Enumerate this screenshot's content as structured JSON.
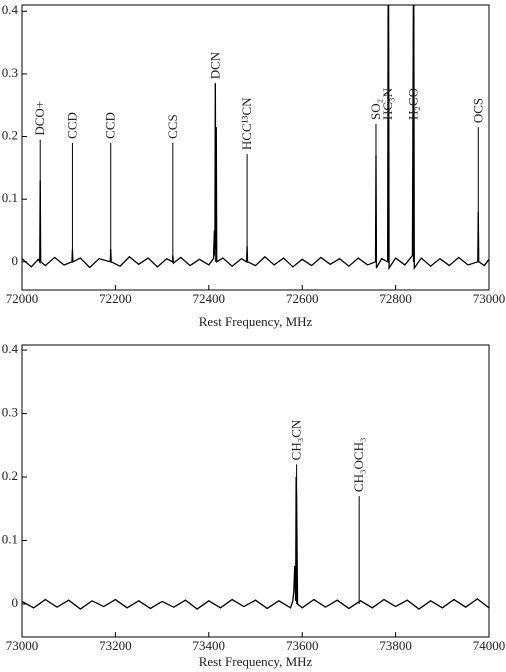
{
  "chart_data": [
    {
      "type": "line",
      "xlabel": "Rest Frequency, MHz",
      "color": "#000000",
      "xlim": [
        72000,
        73000
      ],
      "xticks": [
        72000,
        72200,
        72400,
        72600,
        72800,
        73000
      ],
      "ylim": [
        -0.045,
        0.41
      ],
      "yticks": [
        0,
        0.1,
        0.2,
        0.3,
        0.4
      ],
      "x": [
        72000,
        72020,
        72035,
        72038,
        72039,
        72040,
        72050,
        72070,
        72090,
        72107,
        72108,
        72109,
        72125,
        72145,
        72165,
        72189,
        72190,
        72191,
        72210,
        72230,
        72250,
        72270,
        72290,
        72310,
        72322,
        72323,
        72324,
        72340,
        72360,
        72380,
        72400,
        72410,
        72412,
        72413,
        72414,
        72415,
        72416,
        72417,
        72430,
        72450,
        72470,
        72481,
        72482,
        72483,
        72500,
        72520,
        72540,
        72560,
        72580,
        72600,
        72620,
        72640,
        72660,
        72680,
        72700,
        72720,
        72740,
        72757,
        72758,
        72759,
        72770,
        72783,
        72784,
        72785,
        72786,
        72800,
        72820,
        72836,
        72837,
        72838,
        72839,
        72840,
        72855,
        72875,
        72895,
        72915,
        72935,
        72955,
        72976,
        72977,
        72978,
        72990,
        73000
      ],
      "values": [
        0.005,
        -0.008,
        0.004,
        0.0,
        0.13,
        0.0,
        -0.006,
        0.007,
        -0.005,
        0.0,
        0.02,
        0.0,
        0.006,
        -0.009,
        0.005,
        0.0,
        0.02,
        0.0,
        -0.007,
        0.008,
        -0.004,
        0.006,
        -0.008,
        0.005,
        0.0,
        0.01,
        -0.002,
        0.007,
        -0.006,
        0.004,
        -0.005,
        0.005,
        0.05,
        0.01,
        0.285,
        0.02,
        0.215,
        0.0,
        0.006,
        -0.007,
        0.005,
        0.0,
        0.025,
        0.0,
        -0.006,
        0.008,
        -0.005,
        0.006,
        -0.008,
        0.004,
        -0.006,
        0.007,
        -0.004,
        0.005,
        -0.007,
        0.006,
        -0.005,
        0.0,
        0.17,
        -0.01,
        0.005,
        0.0,
        0.42,
        0.42,
        -0.01,
        0.006,
        -0.005,
        0.01,
        0.2,
        0.42,
        0.42,
        -0.01,
        0.006,
        -0.007,
        0.005,
        -0.006,
        0.007,
        -0.005,
        0.0,
        0.08,
        0.0,
        -0.006,
        0.004
      ],
      "annotations": [
        {
          "text": "DCO+",
          "x": 72039,
          "y": 0.195
        },
        {
          "text": "CCD",
          "x": 72108,
          "y": 0.19
        },
        {
          "text": "CCD",
          "x": 72190,
          "y": 0.19
        },
        {
          "text": "CCS",
          "x": 72323,
          "y": 0.19
        },
        {
          "text": "DCN",
          "x": 72414,
          "y": 0.285
        },
        {
          "text": "HCC¹³CN",
          "x": 72482,
          "y": 0.172
        },
        {
          "text": "SO₂",
          "x": 72758,
          "y": 0.22
        },
        {
          "text": "HC₃N",
          "x": 72784,
          "y": 0.22
        },
        {
          "text": "H₂CO",
          "x": 72838,
          "y": 0.22
        },
        {
          "text": "OCS",
          "x": 72977,
          "y": 0.215
        }
      ]
    },
    {
      "type": "line",
      "xlabel": "Rest Frequency, MHz",
      "color": "#000000",
      "xlim": [
        73000,
        74000
      ],
      "xticks": [
        73000,
        73200,
        73400,
        73600,
        73800,
        74000
      ],
      "ylim": [
        -0.052,
        0.408
      ],
      "yticks": [
        0,
        0.1,
        0.2,
        0.3,
        0.4
      ],
      "x": [
        73000,
        73025,
        73050,
        73075,
        73100,
        73125,
        73150,
        73175,
        73200,
        73225,
        73250,
        73275,
        73300,
        73325,
        73350,
        73375,
        73400,
        73425,
        73450,
        73475,
        73500,
        73525,
        73550,
        73575,
        73580,
        73582,
        73584,
        73586,
        73587,
        73588,
        73590,
        73600,
        73625,
        73650,
        73675,
        73700,
        73725,
        73750,
        73775,
        73800,
        73825,
        73850,
        73875,
        73900,
        73925,
        73950,
        73975,
        74000
      ],
      "values": [
        0.004,
        -0.006,
        0.007,
        -0.005,
        0.006,
        -0.008,
        0.005,
        -0.004,
        0.007,
        -0.006,
        0.005,
        -0.007,
        0.004,
        -0.005,
        0.006,
        -0.008,
        0.005,
        -0.006,
        0.007,
        -0.004,
        0.006,
        -0.007,
        0.005,
        -0.006,
        0.005,
        0.02,
        0.06,
        0.005,
        0.2,
        0.17,
        0.0,
        -0.006,
        0.007,
        -0.005,
        0.006,
        -0.007,
        0.005,
        -0.006,
        0.007,
        -0.004,
        0.006,
        -0.008,
        0.005,
        -0.006,
        0.007,
        -0.005,
        0.008,
        -0.006
      ],
      "annotations": [
        {
          "text": "CH₃CN",
          "x": 73588,
          "y": 0.22
        },
        {
          "text": "CH₃OCH₃",
          "x": 73722,
          "y": 0.17
        }
      ]
    }
  ]
}
